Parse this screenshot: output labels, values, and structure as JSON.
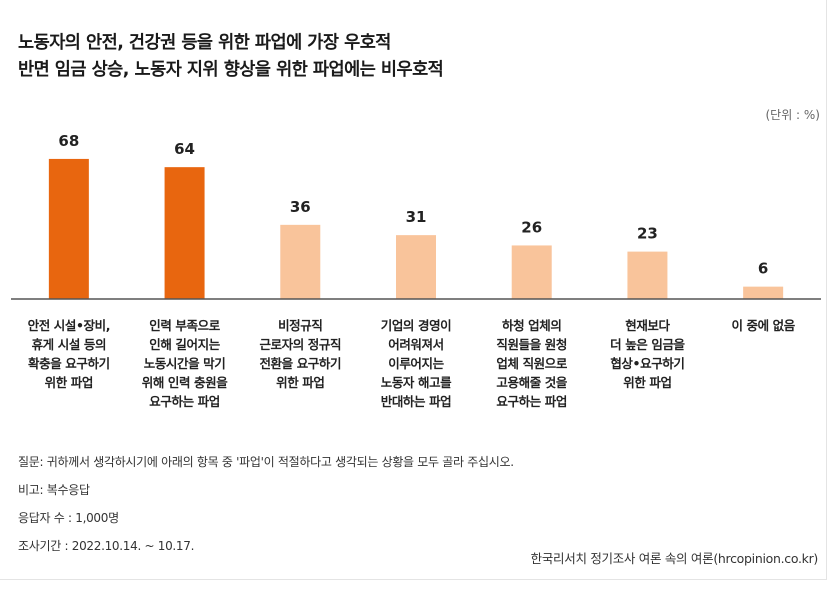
{
  "chart_data": {
    "type": "bar",
    "title_lines": [
      "노동자의 안전, 건강권 등을 위한 파업에 가장 우호적",
      "반면 임금 상승, 노동자 지위 향상을 위한 파업에는 비우호적"
    ],
    "unit_label": "(단위 : %)",
    "categories": [
      "안전 시설•장비,\n휴게 시설 등의\n확충을 요구하기\n위한 파업",
      "인력 부족으로\n인해 길어지는\n노동시간을 막기\n위해 인력 충원을\n요구하는 파업",
      "비정규직\n근로자의 정규직\n전환을 요구하기\n위한 파업",
      "기업의 경영이\n어려워져서\n이루어지는\n노동자 해고를\n반대하는 파업",
      "하청 업체의\n직원들을 원청\n업체 직원으로\n고용해줄 것을\n요구하는 파업",
      "현재보다\n더 높은 임금을\n협상•요구하기\n위한 파업",
      "이 중에 없음"
    ],
    "values": [
      68,
      64,
      36,
      31,
      26,
      23,
      6
    ],
    "ylim": [
      0,
      80
    ],
    "colors": [
      "#e8660f",
      "#e8660f",
      "#f9c49b",
      "#f9c49b",
      "#f9c49b",
      "#f9c49b",
      "#f9c49b"
    ],
    "baseline_color": "#555555"
  },
  "notes": [
    "질문: 귀하께서 생각하시기에 아래의 항목 중 '파업'이 적절하다고 생각되는 상황을 모두 골라 주십시오.",
    "비고: 복수응답",
    "응답자 수 : 1,000명",
    "조사기간 : 2022.10.14. ~ 10.17."
  ],
  "source": "한국리서치 정기조사 여론 속의 여론(hrcopinion.co.kr)"
}
